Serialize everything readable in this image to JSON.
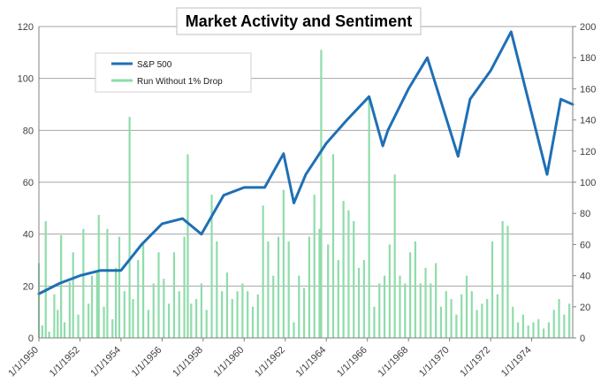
{
  "chart_data": {
    "type": "line",
    "title": "Market Activity and Sentiment",
    "grid": true,
    "legend_placement": "top-left",
    "x": {
      "type": "date",
      "range": [
        "1/1/1950",
        "12/31/1975"
      ],
      "tick_labels": [
        "1/1/1950",
        "1/1/1952",
        "1/1/1954",
        "1/1/1956",
        "1/1/1958",
        "1/1/1960",
        "1/1/1962",
        "1/1/1964",
        "1/1/1966",
        "1/1/1968",
        "1/1/1970",
        "1/1/1972",
        "1/1/1974"
      ]
    },
    "y_left": {
      "ylim": [
        0,
        120
      ],
      "ticks": [
        0,
        20,
        40,
        60,
        80,
        100,
        120
      ]
    },
    "y_right": {
      "ylim": [
        0,
        200
      ],
      "ticks": [
        0,
        20,
        40,
        60,
        80,
        100,
        120,
        140,
        160,
        180,
        200
      ]
    },
    "series": [
      {
        "name": "S&P 500",
        "axis": "left",
        "color": "#1f6fb5",
        "style": "line",
        "points": [
          [
            "1/1/1950",
            17
          ],
          [
            "1/1/1951",
            21
          ],
          [
            "1/1/1952",
            24
          ],
          [
            "1/1/1953",
            26
          ],
          [
            "1/1/1954",
            26
          ],
          [
            "1/1/1955",
            36
          ],
          [
            "1/1/1956",
            44
          ],
          [
            "1/1/1957",
            46
          ],
          [
            "12/1/1957",
            40
          ],
          [
            "1/1/1959",
            55
          ],
          [
            "1/1/1960",
            58
          ],
          [
            "1/1/1961",
            58
          ],
          [
            "12/1/1961",
            71
          ],
          [
            "6/1/1962",
            52
          ],
          [
            "1/1/1963",
            63
          ],
          [
            "1/1/1964",
            75
          ],
          [
            "1/1/1965",
            84
          ],
          [
            "2/1/1966",
            93
          ],
          [
            "10/1/1966",
            74
          ],
          [
            "1/1/1967",
            80
          ],
          [
            "1/1/1968",
            96
          ],
          [
            "12/1/1968",
            108
          ],
          [
            "6/1/1970",
            70
          ],
          [
            "1/1/1971",
            92
          ],
          [
            "1/1/1972",
            103
          ],
          [
            "1/1/1973",
            118
          ],
          [
            "10/1/1974",
            63
          ],
          [
            "6/1/1975",
            92
          ],
          [
            "12/31/1975",
            90
          ]
        ]
      },
      {
        "name": "Run Without 1% Drop",
        "axis": "right",
        "color": "#8fdcaa",
        "style": "spikes",
        "points": [
          [
            "1/1/1950",
            48
          ],
          [
            "3/1/1950",
            8
          ],
          [
            "5/1/1950",
            75
          ],
          [
            "7/1/1950",
            4
          ],
          [
            "10/1/1950",
            28
          ],
          [
            "12/1/1950",
            18
          ],
          [
            "2/1/1951",
            66
          ],
          [
            "4/1/1951",
            10
          ],
          [
            "7/1/1951",
            36
          ],
          [
            "9/1/1951",
            55
          ],
          [
            "12/1/1951",
            15
          ],
          [
            "3/1/1952",
            70
          ],
          [
            "6/1/1952",
            22
          ],
          [
            "8/1/1952",
            40
          ],
          [
            "11/1/1952",
            42
          ],
          [
            "12/1/1952",
            79
          ],
          [
            "3/1/1953",
            20
          ],
          [
            "5/1/1953",
            70
          ],
          [
            "8/1/1953",
            12
          ],
          [
            "10/1/1953",
            45
          ],
          [
            "12/1/1953",
            65
          ],
          [
            "3/1/1954",
            30
          ],
          [
            "6/1/1954",
            142
          ],
          [
            "8/1/1954",
            25
          ],
          [
            "11/1/1954",
            50
          ],
          [
            "2/1/1955",
            60
          ],
          [
            "5/1/1955",
            18
          ],
          [
            "8/1/1955",
            35
          ],
          [
            "11/1/1955",
            55
          ],
          [
            "2/1/1956",
            38
          ],
          [
            "5/1/1956",
            22
          ],
          [
            "8/1/1956",
            55
          ],
          [
            "11/1/1956",
            30
          ],
          [
            "2/1/1957",
            65
          ],
          [
            "4/1/1957",
            118
          ],
          [
            "6/1/1957",
            22
          ],
          [
            "9/1/1957",
            25
          ],
          [
            "12/1/1957",
            35
          ],
          [
            "3/1/1958",
            18
          ],
          [
            "6/1/1958",
            92
          ],
          [
            "9/1/1958",
            62
          ],
          [
            "12/1/1958",
            30
          ],
          [
            "3/1/1959",
            42
          ],
          [
            "6/1/1959",
            25
          ],
          [
            "9/1/1959",
            30
          ],
          [
            "12/1/1959",
            35
          ],
          [
            "3/1/1960",
            30
          ],
          [
            "6/1/1960",
            20
          ],
          [
            "9/1/1960",
            28
          ],
          [
            "12/1/1960",
            85
          ],
          [
            "3/1/1961",
            62
          ],
          [
            "6/1/1961",
            40
          ],
          [
            "9/1/1961",
            65
          ],
          [
            "12/1/1961",
            95
          ],
          [
            "3/1/1962",
            62
          ],
          [
            "6/1/1962",
            10
          ],
          [
            "9/1/1962",
            40
          ],
          [
            "12/1/1962",
            32
          ],
          [
            "3/1/1963",
            65
          ],
          [
            "6/1/1963",
            92
          ],
          [
            "9/1/1963",
            70
          ],
          [
            "10/1/1963",
            185
          ],
          [
            "2/1/1964",
            60
          ],
          [
            "5/1/1964",
            118
          ],
          [
            "8/1/1964",
            50
          ],
          [
            "11/1/1964",
            88
          ],
          [
            "2/1/1965",
            82
          ],
          [
            "5/1/1965",
            75
          ],
          [
            "8/1/1965",
            45
          ],
          [
            "11/1/1965",
            50
          ],
          [
            "2/1/1966",
            155
          ],
          [
            "5/1/1966",
            20
          ],
          [
            "8/1/1966",
            35
          ],
          [
            "11/1/1966",
            40
          ],
          [
            "2/1/1967",
            60
          ],
          [
            "5/1/1967",
            105
          ],
          [
            "8/1/1967",
            40
          ],
          [
            "11/1/1967",
            35
          ],
          [
            "2/1/1968",
            55
          ],
          [
            "5/1/1968",
            62
          ],
          [
            "8/1/1968",
            35
          ],
          [
            "11/1/1968",
            45
          ],
          [
            "2/1/1969",
            35
          ],
          [
            "5/1/1969",
            48
          ],
          [
            "8/1/1969",
            20
          ],
          [
            "11/1/1969",
            30
          ],
          [
            "2/1/1970",
            25
          ],
          [
            "5/1/1970",
            15
          ],
          [
            "8/1/1970",
            28
          ],
          [
            "11/1/1970",
            40
          ],
          [
            "2/1/1971",
            30
          ],
          [
            "5/1/1971",
            18
          ],
          [
            "8/1/1971",
            22
          ],
          [
            "11/1/1971",
            25
          ],
          [
            "2/1/1972",
            62
          ],
          [
            "5/1/1972",
            28
          ],
          [
            "8/1/1972",
            75
          ],
          [
            "11/1/1972",
            72
          ],
          [
            "2/1/1973",
            20
          ],
          [
            "5/1/1973",
            10
          ],
          [
            "8/1/1973",
            15
          ],
          [
            "11/1/1973",
            8
          ],
          [
            "2/1/1974",
            10
          ],
          [
            "5/1/1974",
            12
          ],
          [
            "8/1/1974",
            6
          ],
          [
            "11/1/1974",
            10
          ],
          [
            "2/1/1975",
            18
          ],
          [
            "5/1/1975",
            25
          ],
          [
            "8/1/1975",
            15
          ],
          [
            "11/1/1975",
            22
          ]
        ]
      }
    ]
  }
}
